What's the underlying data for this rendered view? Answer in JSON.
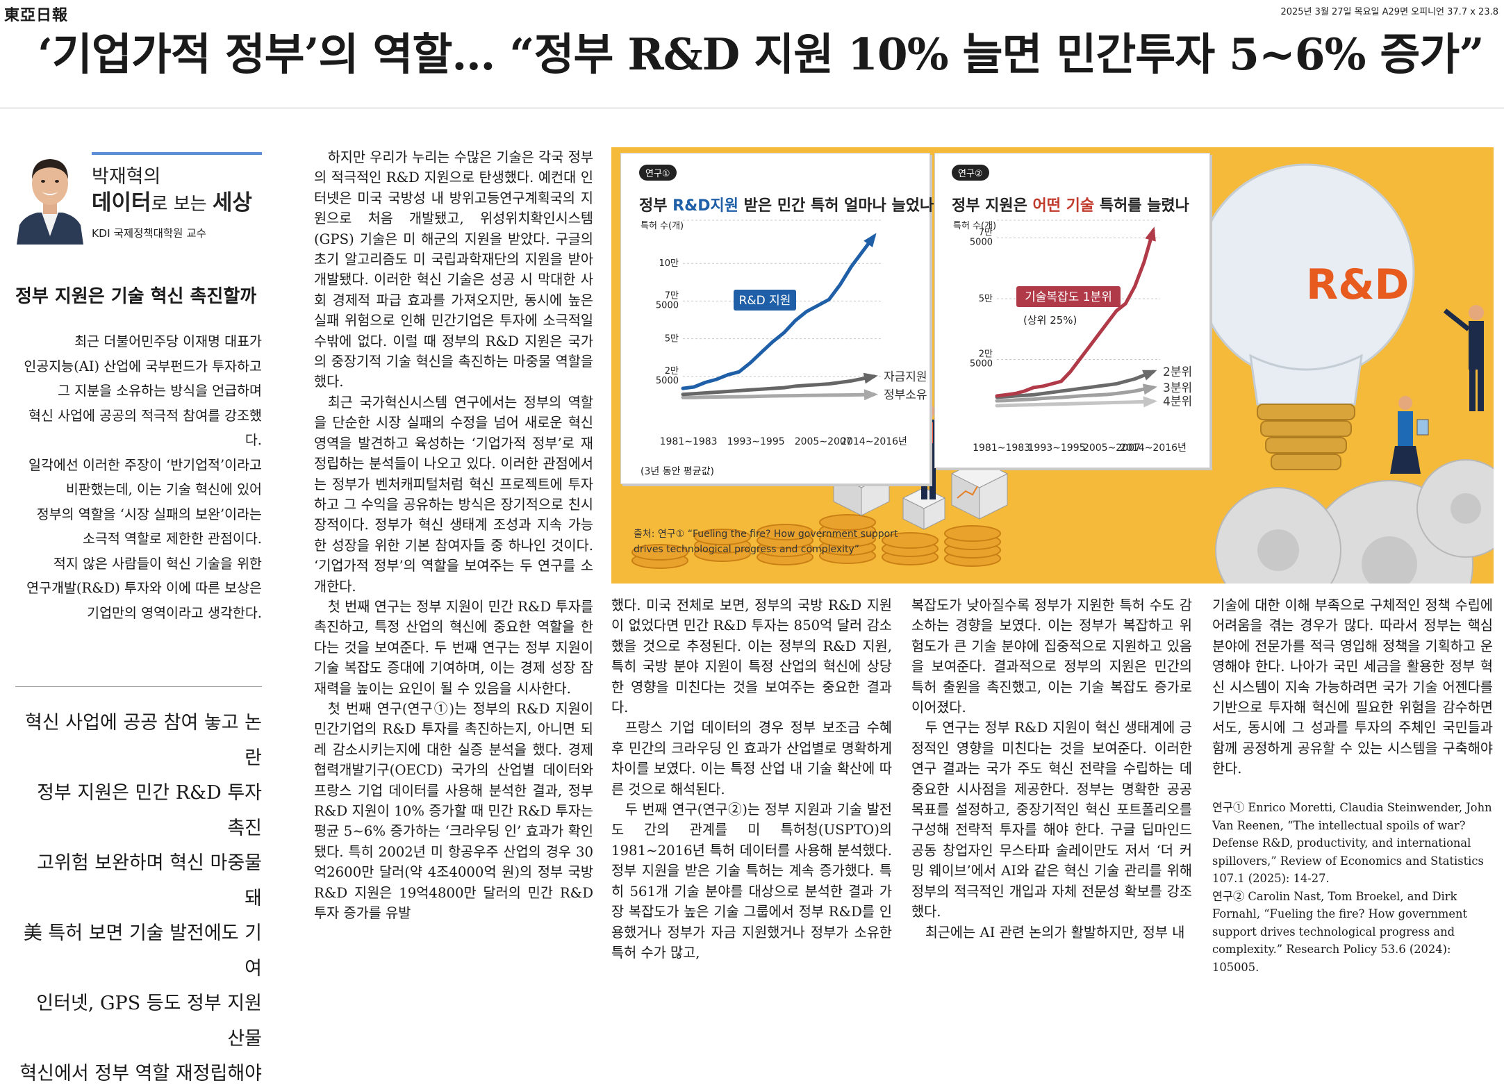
{
  "masthead": {
    "logo": "東亞日報",
    "dateline": "2025년 3월 27일 목요일 A29면 오피니언 37.7 x 23.8"
  },
  "headline": "‘기업가적 정부’의 역할… “정부 R&D 지원 10% 늘면 민간투자 5~6% 증가”",
  "column": {
    "pre_title": "박재혁의",
    "title_bold_1": "데이터",
    "title_light": "로 보는 ",
    "title_bold_2": "세상",
    "affiliation": "KDI 국제정책대학원 교수"
  },
  "subheading": "정부 지원은 기술 혁신 촉진할까",
  "lede": [
    "최근 더불어민주당 이재명 대표가",
    "인공지능(AI) 산업에 국부펀드가 투자하고",
    "그 지분을 소유하는 방식을 언급하며",
    "혁신 사업에 공공의 적극적 참여를 강조했다.",
    "일각에선 이러한 주장이 ‘반기업적’이라고",
    "비판했는데, 이는 기술 혁신에 있어",
    "정부의 역할을 ‘시장 실패의 보완’이라는",
    "소극적 역할로 제한한 관점이다.",
    "적지 않은 사람들이 혁신 기술을 위한",
    "연구개발(R&D) 투자와 이에 따른 보상은",
    "기업만의 영역이라고 생각한다."
  ],
  "deck": [
    "혁신 사업에 공공 참여 놓고 논란",
    "정부 지원은 민간 R&D 투자 촉진",
    "고위험 보완하며 혁신 마중물 돼",
    "美 특허 보면 기술 발전에도 기여",
    "인터넷, GPS 등도 정부 지원 산물",
    "혁신에서 정부 역할 재정립해야"
  ],
  "body": {
    "colA": [
      "하지만 우리가 누리는 수많은 기술은 각국 정부의 적극적인 R&D 지원으로 탄생했다. 예컨대 인터넷은 미국 국방성 내 방위고등연구계획국의 지원으로 처음 개발됐고, 위성위치확인시스템(GPS) 기술은 미 해군의 지원을 받았다. 구글의 초기 알고리즘도 미 국립과학재단의 지원을 받아 개발됐다. 이러한 혁신 기술은 성공 시 막대한 사회 경제적 파급 효과를 가져오지만, 동시에 높은 실패 위험으로 인해 민간기업은 투자에 소극적일 수밖에 없다. 이럴 때 정부의 R&D 지원은 국가의 중장기적 기술 혁신을 촉진하는 마중물 역할을 했다.",
      "최근 국가혁신시스템 연구에서는 정부의 역할을 단순한 시장 실패의 수정을 넘어 새로운 혁신 영역을 발견하고 육성하는 ‘기업가적 정부’로 재정립하는 분석들이 나오고 있다. 이러한 관점에서는 정부가 벤처캐피털처럼 혁신 프로젝트에 투자하고 그 수익을 공유하는 방식은 장기적으로 친시장적이다. 정부가 혁신 생태계 조성과 지속 가능한 성장을 위한 기본 참여자들 중 하나인 것이다. ‘기업가적 정부’의 역할을 보여주는 두 연구를 소개한다.",
      "첫 번째 연구는 정부 지원이 민간 R&D 투자를 촉진하고, 특정 산업의 혁신에 중요한 역할을 한다는 것을 보여준다. 두 번째 연구는 정부 지원이 기술 복잡도 증대에 기여하며, 이는 경제 성장 잠재력을 높이는 요인이 될 수 있음을 시사한다.",
      "첫 번째 연구(연구①)는 정부의 R&D 지원이 민간기업의 R&D 투자를 촉진하는지, 아니면 되레 감소시키는지에 대한 실증 분석을 했다. 경제협력개발기구(OECD) 국가의 산업별 데이터와 프랑스 기업 데이터를 사용해 분석한 결과, 정부 R&D 지원이 10% 증가할 때 민간 R&D 투자는 평균 5∼6% 증가하는 ‘크라우딩 인’ 효과가 확인됐다. 특히 2002년 미 항공우주 산업의 경우 30억2600만 달러(약 4조4000억 원)의 정부 국방 R&D 지원은 19억4800만 달러의 민간 R&D 투자 증가를 유발"
    ],
    "colB": [
      "했다. 미국 전체로 보면, 정부의 국방 R&D 지원이 없었다면 민간 R&D 투자는 850억 달러 감소했을 것으로 추정된다. 이는 정부의 R&D 지원, 특히 국방 분야 지원이 특정 산업의 혁신에 상당한 영향을 미친다는 것을 보여주는 중요한 결과다.",
      "프랑스 기업 데이터의 경우 정부 보조금 수혜 후 민간의 크라우딩 인 효과가 산업별로 명확하게 차이를 보였다. 이는 특정 산업 내 기술 확산에 따른 것으로 해석된다.",
      "두 번째 연구(연구②)는 정부 지원과 기술 발전도 간의 관계를 미 특허청(USPTO)의 1981∼2016년 특허 데이터를 사용해 분석했다. 정부 지원을 받은 기술 특허는 계속 증가했다. 특히 561개 기술 분야를 대상으로 분석한 결과 가장 복잡도가 높은 기술 그룹에서 정부 R&D를 인용했거나 정부가 자금 지원했거나 정부가 소유한 특허 수가 많고,"
    ],
    "colC": [
      "복잡도가 낮아질수록 정부가 지원한 특허 수도 감소하는 경향을 보였다. 이는 정부가 복잡하고 위험도가 큰 기술 분야에 집중적으로 지원하고 있음을 보여준다. 결과적으로 정부의 지원은 민간의 특허 출원을 촉진했고, 이는 기술 복잡도 증가로 이어졌다.",
      "두 연구는 정부 R&D 지원이 혁신 생태계에 긍정적인 영향을 미친다는 것을 보여준다. 이러한 연구 결과는 국가 주도 혁신 전략을 수립하는 데 중요한 시사점을 제공한다. 정부는 명확한 공공 목표를 설정하고, 중장기적인 혁신 포트폴리오를 구성해 전략적 투자를 해야 한다. 구글 딥마인드 공동 창업자인 무스타파 술레이만도 저서 ‘더 커밍 웨이브’에서 AI와 같은 혁신 기술 관리를 위해 정부의 적극적인 개입과 자체 전문성 확보를 강조했다.",
      "최근에는 AI 관련 논의가 활발하지만, 정부 내"
    ],
    "colD": [
      "기술에 대한 이해 부족으로 구체적인 정책 수립에 어려움을 겪는 경우가 많다. 따라서 정부는 핵심 분야에 전문가를 적극 영입해 정책을 기획하고 운영해야 한다. 나아가 국민 세금을 활용한 정부 혁신 시스템이 지속 가능하려면 국가 기술 어젠다를 기반으로 투자해 혁신에 필요한 위험을 감수하면서도, 동시에 그 성과를 투자의 주체인 국민들과 함께 공정하게 공유할 수 있는 시스템을 구축해야 한다."
    ],
    "refs": [
      "연구① Enrico Moretti, Claudia Steinwender, John Van Reenen, “The intellectual spoils of war? Defense R&D, productivity, and international spillovers,” Review of Economics and Statistics 107.1 (2025): 14-27.",
      "연구② Carolin Nast, Tom Broekel, and Dirk Fornahl, “Fueling the fire? How government support drives technological progress and complexity.” Research Policy 53.6 (2024): 105005."
    ]
  },
  "infographic": {
    "source_line1": "출처: 연구① “Fueling the fire? How government support",
    "source_line2": "drives technological progress and complexity”",
    "bulb_text": "R&D",
    "colors": {
      "background": "#f6ba3b",
      "blue": "#1f5fa8",
      "red": "#b03a48",
      "gray": "#6a6a6a",
      "lightgray": "#a8a8a8",
      "lightergray": "#c4c4c4"
    }
  },
  "chart_data": [
    {
      "type": "line",
      "tag": "연구①",
      "title_pre": "정부 ",
      "title_hl": "R&D지원",
      "title_post": " 받은 민간 특허 얼마나 늘었나",
      "ylabel": "특허 수(개)",
      "ylim": [
        0,
        125000
      ],
      "yticks": [
        {
          "value": 25000,
          "label1": "2만",
          "label2": "5000"
        },
        {
          "value": 50000,
          "label1": "5만",
          "label2": ""
        },
        {
          "value": 75000,
          "label1": "7만",
          "label2": "5000"
        },
        {
          "value": 100000,
          "label1": "10만",
          "label2": ""
        }
      ],
      "x": [
        1981,
        1983,
        1985,
        1987,
        1989,
        1991,
        1993,
        1995,
        1997,
        1999,
        2001,
        2003,
        2005,
        2007,
        2009,
        2011,
        2013,
        2015
      ],
      "xticks": [
        "1981∼1983",
        "1993∼1995",
        "2005∼2007",
        "2014∼2016년"
      ],
      "xticks_pos": [
        1982,
        1994,
        2006,
        2015
      ],
      "x_note": "(3년 동안 평균값)",
      "callout": "R&D 지원",
      "series": [
        {
          "name": "R&D 지원",
          "color": "#1f5fa8",
          "values": [
            17000,
            18000,
            21000,
            23000,
            26000,
            28000,
            34000,
            41000,
            48000,
            54000,
            62000,
            68000,
            72000,
            76000,
            86000,
            98000,
            108000,
            118000
          ]
        },
        {
          "name": "자금지원",
          "color": "#666666",
          "values": [
            13000,
            13500,
            14000,
            14500,
            15000,
            15500,
            16000,
            16500,
            17000,
            17500,
            18500,
            19000,
            19500,
            20000,
            21000,
            22000,
            23500,
            25000
          ]
        },
        {
          "name": "정부소유",
          "color": "#a8a8a8",
          "values": [
            11000,
            11000,
            11200,
            11300,
            11400,
            11500,
            11600,
            11800,
            12000,
            12100,
            12200,
            12300,
            12400,
            12500,
            12600,
            12700,
            12800,
            13000
          ]
        }
      ]
    },
    {
      "type": "line",
      "tag": "연구②",
      "title_pre": "정부 지원은 ",
      "title_hl": "어떤 기술",
      "title_post": " 특허를 늘렸나",
      "ylabel": "특허 수(개)",
      "ylim": [
        0,
        80000
      ],
      "yticks": [
        {
          "value": 25000,
          "label1": "2만",
          "label2": "5000"
        },
        {
          "value": 50000,
          "label1": "5만",
          "label2": ""
        },
        {
          "value": 75000,
          "label1": "7만",
          "label2": "5000"
        }
      ],
      "x": [
        1981,
        1983,
        1985,
        1987,
        1989,
        1991,
        1993,
        1995,
        1997,
        1999,
        2001,
        2003,
        2005,
        2007,
        2009,
        2011,
        2013,
        2015
      ],
      "xticks": [
        "1981∼1983",
        "1993∼1995",
        "2005∼2007",
        "2014∼2016년"
      ],
      "xticks_pos": [
        1982,
        1994,
        2006,
        2015
      ],
      "callout": "기술복잡도 1분위",
      "callout_sub": "(상위 25%)",
      "series": [
        {
          "name": "기술복잡도 1분위",
          "color": "#b03a48",
          "values": [
            10000,
            10500,
            11000,
            12000,
            13500,
            14000,
            15000,
            16000,
            20000,
            25000,
            30000,
            35000,
            40000,
            45000,
            48000,
            55000,
            65000,
            78000
          ]
        },
        {
          "name": "2분위",
          "color": "#6a6a6a",
          "values": [
            9500,
            9700,
            10000,
            10200,
            10500,
            11000,
            11500,
            12000,
            12500,
            13000,
            13500,
            14000,
            14500,
            15000,
            16000,
            17000,
            18500,
            20000
          ]
        },
        {
          "name": "3분위",
          "color": "#a0a0a0",
          "values": [
            8000,
            8100,
            8300,
            8500,
            8700,
            9000,
            9200,
            9400,
            9700,
            10000,
            10200,
            10400,
            10600,
            11000,
            11500,
            12000,
            12800,
            13500
          ]
        },
        {
          "name": "4분위",
          "color": "#c4c4c4",
          "values": [
            6000,
            6100,
            6200,
            6300,
            6400,
            6500,
            6600,
            6700,
            6800,
            6900,
            7000,
            7100,
            7200,
            7300,
            7400,
            7500,
            7600,
            7800
          ]
        }
      ]
    }
  ]
}
